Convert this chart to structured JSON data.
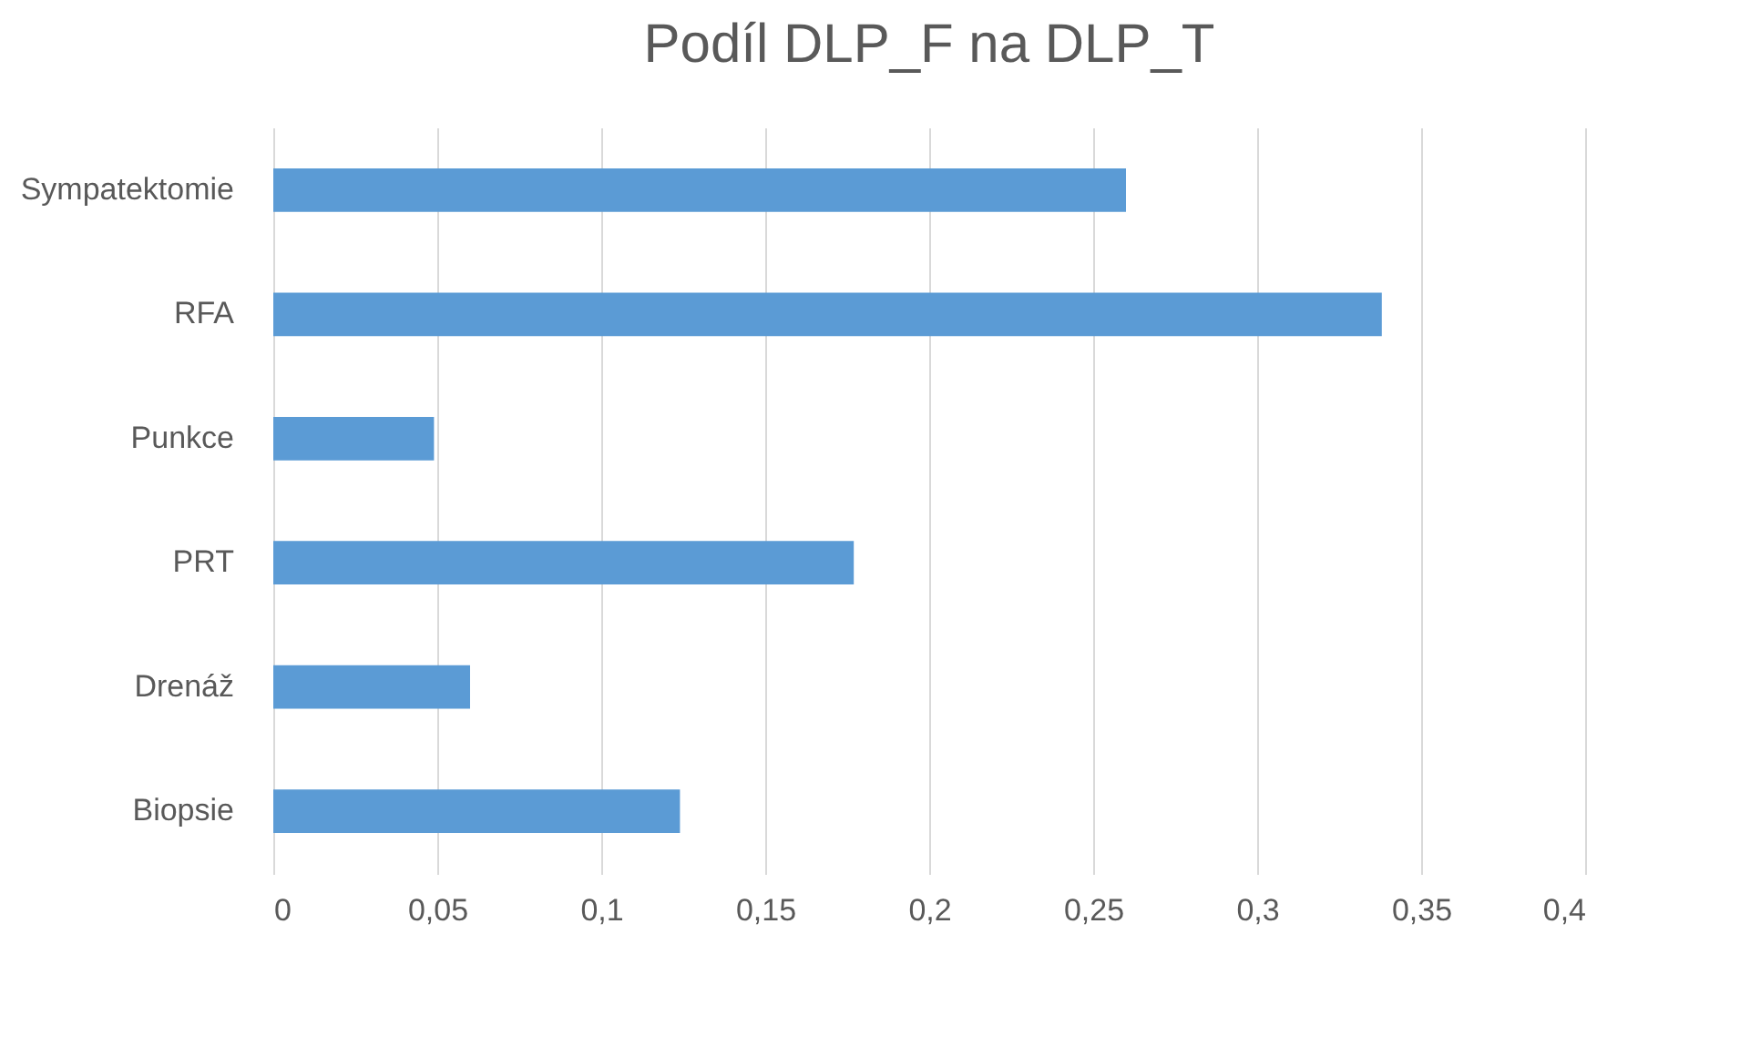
{
  "chart_data": {
    "type": "bar",
    "orientation": "horizontal",
    "title": "Podíl DLP_F na DLP_T",
    "categories": [
      "Sympatektomie",
      "RFA",
      "Punkce",
      "PRT",
      "Drenáž",
      "Biopsie"
    ],
    "values": [
      0.26,
      0.338,
      0.049,
      0.177,
      0.06,
      0.124
    ],
    "color": "#5b9bd5",
    "xlim": [
      0,
      0.4
    ],
    "xticks": [
      0,
      {
        "value": 0.05,
        "label": "0,05"
      },
      {
        "value": 0.1,
        "label": "0,1"
      },
      {
        "value": 0.15,
        "label": "0,15"
      },
      {
        "value": 0.2,
        "label": "0,2"
      },
      {
        "value": 0.25,
        "label": "0,25"
      },
      {
        "value": 0.3,
        "label": "0,3"
      },
      {
        "value": 0.35,
        "label": "0,35"
      },
      {
        "value": 0.4,
        "label": "0,4"
      }
    ],
    "grid": "x"
  }
}
